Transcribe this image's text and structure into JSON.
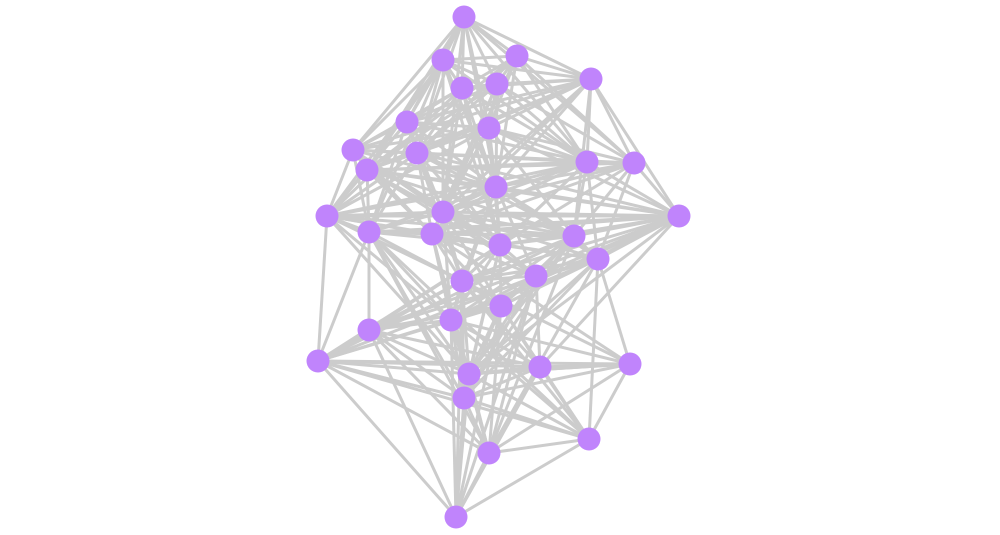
{
  "diagram": {
    "type": "network-graph",
    "node_color": "#c084fc",
    "edge_color": "#cccccc",
    "node_count": 35,
    "edges": [
      [
        1,
        2
      ],
      [
        1,
        3
      ],
      [
        1,
        4
      ],
      [
        1,
        5
      ],
      [
        1,
        6
      ],
      [
        1,
        7
      ],
      [
        1,
        8
      ],
      [
        1,
        9
      ],
      [
        1,
        10
      ],
      [
        1,
        11
      ],
      [
        1,
        12
      ],
      [
        1,
        14
      ],
      [
        1,
        16
      ],
      [
        1,
        13
      ],
      [
        2,
        3
      ],
      [
        2,
        4
      ],
      [
        2,
        5
      ],
      [
        2,
        6
      ],
      [
        2,
        7
      ],
      [
        2,
        9
      ],
      [
        2,
        10
      ],
      [
        2,
        11
      ],
      [
        2,
        14
      ],
      [
        2,
        15
      ],
      [
        2,
        16
      ],
      [
        2,
        18
      ],
      [
        2,
        12
      ],
      [
        2,
        20
      ],
      [
        3,
        4
      ],
      [
        3,
        5
      ],
      [
        3,
        6
      ],
      [
        3,
        8
      ],
      [
        3,
        10
      ],
      [
        3,
        12
      ],
      [
        3,
        13
      ],
      [
        3,
        14
      ],
      [
        3,
        16
      ],
      [
        3,
        11
      ],
      [
        3,
        19
      ],
      [
        4,
        5
      ],
      [
        4,
        6
      ],
      [
        4,
        7
      ],
      [
        4,
        8
      ],
      [
        4,
        10
      ],
      [
        4,
        11
      ],
      [
        4,
        12
      ],
      [
        4,
        13
      ],
      [
        4,
        14
      ],
      [
        4,
        16
      ],
      [
        4,
        17
      ],
      [
        4,
        9
      ],
      [
        4,
        19
      ],
      [
        4,
        21
      ],
      [
        5,
        6
      ],
      [
        5,
        7
      ],
      [
        5,
        8
      ],
      [
        5,
        9
      ],
      [
        5,
        10
      ],
      [
        5,
        14
      ],
      [
        5,
        16
      ],
      [
        5,
        12
      ],
      [
        5,
        20
      ],
      [
        5,
        15
      ],
      [
        6,
        7
      ],
      [
        6,
        8
      ],
      [
        6,
        10
      ],
      [
        6,
        11
      ],
      [
        6,
        12
      ],
      [
        6,
        14
      ],
      [
        6,
        16
      ],
      [
        6,
        19
      ],
      [
        6,
        13
      ],
      [
        7,
        8
      ],
      [
        7,
        9
      ],
      [
        7,
        10
      ],
      [
        7,
        11
      ],
      [
        7,
        14
      ],
      [
        7,
        15
      ],
      [
        7,
        16
      ],
      [
        7,
        12
      ],
      [
        7,
        18
      ],
      [
        7,
        20
      ],
      [
        8,
        9
      ],
      [
        8,
        10
      ],
      [
        8,
        11
      ],
      [
        8,
        12
      ],
      [
        8,
        13
      ],
      [
        8,
        14
      ],
      [
        8,
        16
      ],
      [
        8,
        17
      ],
      [
        8,
        19
      ],
      [
        8,
        20
      ],
      [
        8,
        21
      ],
      [
        8,
        15
      ],
      [
        9,
        10
      ],
      [
        9,
        11
      ],
      [
        9,
        14
      ],
      [
        9,
        15
      ],
      [
        9,
        16
      ],
      [
        9,
        18
      ],
      [
        9,
        12
      ],
      [
        9,
        20
      ],
      [
        9,
        19
      ],
      [
        10,
        11
      ],
      [
        10,
        12
      ],
      [
        10,
        13
      ],
      [
        10,
        14
      ],
      [
        10,
        15
      ],
      [
        10,
        16
      ],
      [
        10,
        17
      ],
      [
        10,
        18
      ],
      [
        10,
        19
      ],
      [
        10,
        20
      ],
      [
        10,
        21
      ],
      [
        10,
        23
      ],
      [
        11,
        12
      ],
      [
        11,
        14
      ],
      [
        11,
        15
      ],
      [
        11,
        16
      ],
      [
        11,
        17
      ],
      [
        11,
        18
      ],
      [
        11,
        19
      ],
      [
        11,
        20
      ],
      [
        11,
        21
      ],
      [
        11,
        24
      ],
      [
        11,
        13
      ],
      [
        12,
        13
      ],
      [
        12,
        14
      ],
      [
        12,
        16
      ],
      [
        12,
        17
      ],
      [
        12,
        19
      ],
      [
        12,
        20
      ],
      [
        12,
        21
      ],
      [
        12,
        22
      ],
      [
        12,
        15
      ],
      [
        12,
        23
      ],
      [
        13,
        14
      ],
      [
        13,
        16
      ],
      [
        13,
        17
      ],
      [
        13,
        20
      ],
      [
        13,
        21
      ],
      [
        13,
        22
      ],
      [
        13,
        19
      ],
      [
        14,
        15
      ],
      [
        14,
        16
      ],
      [
        14,
        17
      ],
      [
        14,
        18
      ],
      [
        14,
        19
      ],
      [
        14,
        20
      ],
      [
        14,
        21
      ],
      [
        14,
        22
      ],
      [
        14,
        23
      ],
      [
        14,
        24
      ],
      [
        14,
        26
      ],
      [
        15,
        16
      ],
      [
        15,
        17
      ],
      [
        15,
        18
      ],
      [
        15,
        19
      ],
      [
        15,
        20
      ],
      [
        15,
        21
      ],
      [
        15,
        28
      ],
      [
        15,
        23
      ],
      [
        15,
        26
      ],
      [
        15,
        29
      ],
      [
        16,
        17
      ],
      [
        16,
        18
      ],
      [
        16,
        19
      ],
      [
        16,
        20
      ],
      [
        16,
        21
      ],
      [
        16,
        22
      ],
      [
        16,
        23
      ],
      [
        16,
        24
      ],
      [
        16,
        25
      ],
      [
        16,
        26
      ],
      [
        17,
        18
      ],
      [
        17,
        19
      ],
      [
        17,
        20
      ],
      [
        17,
        21
      ],
      [
        17,
        22
      ],
      [
        17,
        23
      ],
      [
        17,
        24
      ],
      [
        17,
        25
      ],
      [
        17,
        26
      ],
      [
        17,
        29
      ],
      [
        17,
        30
      ],
      [
        17,
        27
      ],
      [
        18,
        19
      ],
      [
        18,
        20
      ],
      [
        18,
        21
      ],
      [
        18,
        23
      ],
      [
        18,
        26
      ],
      [
        18,
        27
      ],
      [
        18,
        28
      ],
      [
        18,
        29
      ],
      [
        18,
        32
      ],
      [
        18,
        33
      ],
      [
        18,
        34
      ],
      [
        19,
        20
      ],
      [
        19,
        21
      ],
      [
        19,
        22
      ],
      [
        19,
        23
      ],
      [
        19,
        24
      ],
      [
        19,
        25
      ],
      [
        19,
        26
      ],
      [
        19,
        29
      ],
      [
        19,
        31
      ],
      [
        19,
        34
      ],
      [
        20,
        21
      ],
      [
        20,
        22
      ],
      [
        20,
        23
      ],
      [
        20,
        24
      ],
      [
        20,
        25
      ],
      [
        20,
        26
      ],
      [
        20,
        27
      ],
      [
        20,
        28
      ],
      [
        20,
        29
      ],
      [
        20,
        32
      ],
      [
        21,
        22
      ],
      [
        21,
        23
      ],
      [
        21,
        24
      ],
      [
        21,
        25
      ],
      [
        21,
        26
      ],
      [
        21,
        28
      ],
      [
        21,
        29
      ],
      [
        21,
        32
      ],
      [
        21,
        34
      ],
      [
        22,
        23
      ],
      [
        22,
        24
      ],
      [
        22,
        25
      ],
      [
        22,
        26
      ],
      [
        22,
        27
      ],
      [
        22,
        29
      ],
      [
        22,
        31
      ],
      [
        22,
        33
      ],
      [
        22,
        34
      ],
      [
        22,
        32
      ],
      [
        23,
        24
      ],
      [
        23,
        25
      ],
      [
        23,
        26
      ],
      [
        23,
        27
      ],
      [
        23,
        28
      ],
      [
        23,
        29
      ],
      [
        23,
        30
      ],
      [
        23,
        31
      ],
      [
        23,
        32
      ],
      [
        23,
        35
      ],
      [
        23,
        33
      ],
      [
        24,
        25
      ],
      [
        24,
        26
      ],
      [
        24,
        28
      ],
      [
        24,
        29
      ],
      [
        24,
        30
      ],
      [
        24,
        32
      ],
      [
        24,
        34
      ],
      [
        24,
        35
      ],
      [
        25,
        26
      ],
      [
        25,
        27
      ],
      [
        25,
        28
      ],
      [
        25,
        29
      ],
      [
        25,
        30
      ],
      [
        25,
        32
      ],
      [
        25,
        33
      ],
      [
        25,
        34
      ],
      [
        25,
        35
      ],
      [
        26,
        27
      ],
      [
        26,
        28
      ],
      [
        26,
        29
      ],
      [
        26,
        30
      ],
      [
        26,
        31
      ],
      [
        26,
        32
      ],
      [
        26,
        34
      ],
      [
        26,
        35
      ],
      [
        26,
        33
      ],
      [
        27,
        28
      ],
      [
        27,
        29
      ],
      [
        27,
        30
      ],
      [
        27,
        32
      ],
      [
        27,
        34
      ],
      [
        27,
        35
      ],
      [
        28,
        29
      ],
      [
        28,
        30
      ],
      [
        28,
        31
      ],
      [
        28,
        32
      ],
      [
        28,
        34
      ],
      [
        28,
        35
      ],
      [
        28,
        33
      ],
      [
        29,
        30
      ],
      [
        29,
        31
      ],
      [
        29,
        32
      ],
      [
        29,
        33
      ],
      [
        29,
        34
      ],
      [
        29,
        35
      ],
      [
        30,
        31
      ],
      [
        30,
        32
      ],
      [
        30,
        33
      ],
      [
        30,
        34
      ],
      [
        30,
        35
      ],
      [
        31,
        32
      ],
      [
        31,
        33
      ],
      [
        31,
        34
      ],
      [
        31,
        29
      ],
      [
        32,
        33
      ],
      [
        32,
        34
      ],
      [
        32,
        35
      ],
      [
        33,
        34
      ],
      [
        33,
        35
      ],
      [
        34,
        35
      ]
    ]
  }
}
